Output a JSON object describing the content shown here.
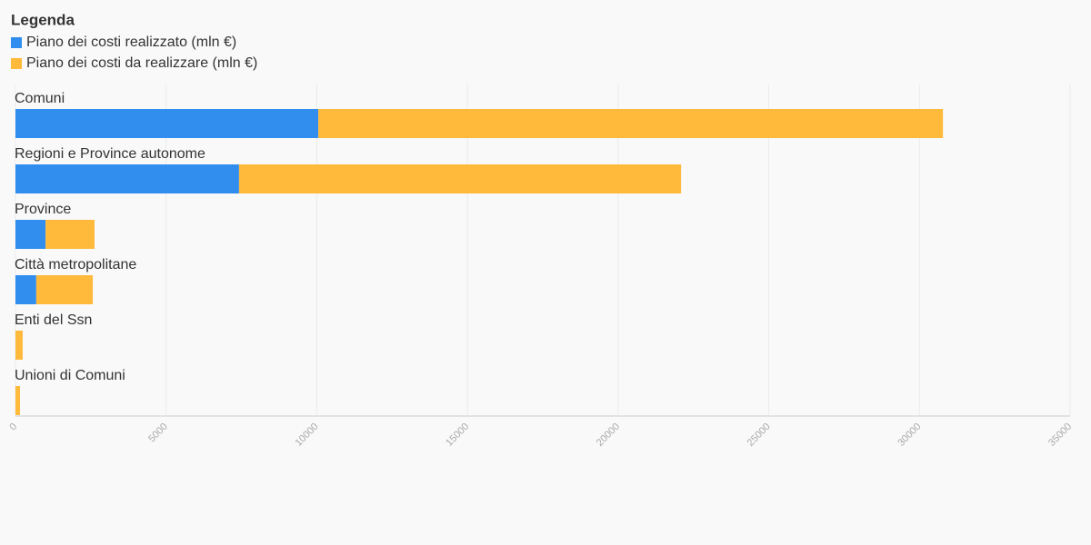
{
  "chart_data": {
    "type": "stacked_barh",
    "legend_title": "Legenda",
    "categories": [
      "Comuni",
      "Regioni e Province autonome",
      "Province",
      "Città metropolitane",
      "Enti del Ssn",
      "Unioni di Comuni"
    ],
    "series": [
      {
        "name": "Piano dei costi realizzato (mln €)",
        "color": "#318eef",
        "values": [
          10050,
          7420,
          1000,
          690,
          0,
          0
        ]
      },
      {
        "name": "Piano dei costi da realizzare (mln €)",
        "color": "#ffb93b",
        "values": [
          20730,
          14670,
          1625,
          1875,
          240,
          150
        ]
      }
    ],
    "xlim": [
      0,
      35000
    ],
    "xticks": [
      0,
      5000,
      10000,
      15000,
      20000,
      25000,
      30000,
      35000
    ],
    "grid": true
  }
}
